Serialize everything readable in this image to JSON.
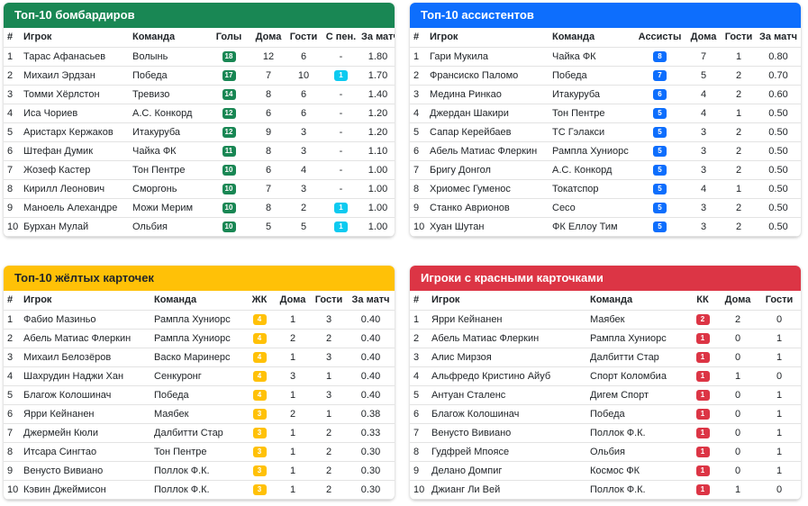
{
  "tables": [
    {
      "title": "Топ-10 бомбардиров",
      "columns": [
        "#",
        "Игрок",
        "Команда",
        "Голы",
        "Дома",
        "Гости",
        "С пен.",
        "За матч"
      ],
      "rows": [
        [
          "1",
          "Тарас Афанасьев",
          "Волынь",
          "18",
          "12",
          "6",
          "-",
          "1.80"
        ],
        [
          "2",
          "Михаил Эрдзан",
          "Победа",
          "17",
          "7",
          "10",
          "1",
          "1.70"
        ],
        [
          "3",
          "Томми Хёрлстон",
          "Тревизо",
          "14",
          "8",
          "6",
          "-",
          "1.40"
        ],
        [
          "4",
          "Иса Чориев",
          "А.С. Конкорд",
          "12",
          "6",
          "6",
          "-",
          "1.20"
        ],
        [
          "5",
          "Аристарх Кержаков",
          "Итакуруба",
          "12",
          "9",
          "3",
          "-",
          "1.20"
        ],
        [
          "6",
          "Штефан Думик",
          "Чайка ФК",
          "11",
          "8",
          "3",
          "-",
          "1.10"
        ],
        [
          "7",
          "Жозеф Кастер",
          "Тон Пентре",
          "10",
          "6",
          "4",
          "-",
          "1.00"
        ],
        [
          "8",
          "Кирилл Леонович",
          "Сморгонь",
          "10",
          "7",
          "3",
          "-",
          "1.00"
        ],
        [
          "9",
          "Маноель Алехандре",
          "Можи Мерим",
          "10",
          "8",
          "2",
          "1",
          "1.00"
        ],
        [
          "10",
          "Бурхан Мулай",
          "Ольбия",
          "10",
          "5",
          "5",
          "1",
          "1.00"
        ]
      ]
    },
    {
      "title": "Топ-10 ассистентов",
      "columns": [
        "#",
        "Игрок",
        "Команда",
        "Ассисты",
        "Дома",
        "Гости",
        "За матч"
      ],
      "rows": [
        [
          "1",
          "Гари Мукила",
          "Чайка ФК",
          "8",
          "7",
          "1",
          "0.80"
        ],
        [
          "2",
          "Франсиско Паломо",
          "Победа",
          "7",
          "5",
          "2",
          "0.70"
        ],
        [
          "3",
          "Медина Ринкао",
          "Итакуруба",
          "6",
          "4",
          "2",
          "0.60"
        ],
        [
          "4",
          "Джердан Шакири",
          "Тон Пентре",
          "5",
          "4",
          "1",
          "0.50"
        ],
        [
          "5",
          "Сапар Керейбаев",
          "ТС Гэлакси",
          "5",
          "3",
          "2",
          "0.50"
        ],
        [
          "6",
          "Абель Матиас Флеркин",
          "Рампла Хуниорс",
          "5",
          "3",
          "2",
          "0.50"
        ],
        [
          "7",
          "Бригу Донгол",
          "А.С. Конкорд",
          "5",
          "3",
          "2",
          "0.50"
        ],
        [
          "8",
          "Хриомес Гуменос",
          "Токатспор",
          "5",
          "4",
          "1",
          "0.50"
        ],
        [
          "9",
          "Станко Аврионов",
          "Сесо",
          "5",
          "3",
          "2",
          "0.50"
        ],
        [
          "10",
          "Хуан Шутан",
          "ФК Еллоу Тим",
          "5",
          "3",
          "2",
          "0.50"
        ]
      ]
    },
    {
      "title": "Топ-10 жёлтых карточек",
      "columns": [
        "#",
        "Игрок",
        "Команда",
        "ЖК",
        "Дома",
        "Гости",
        "За матч"
      ],
      "rows": [
        [
          "1",
          "Фабио Мазиньо",
          "Рампла Хуниорс",
          "4",
          "1",
          "3",
          "0.40"
        ],
        [
          "2",
          "Абель Матиас Флеркин",
          "Рампла Хуниорс",
          "4",
          "2",
          "2",
          "0.40"
        ],
        [
          "3",
          "Михаил Белозёров",
          "Васко Маринерс",
          "4",
          "1",
          "3",
          "0.40"
        ],
        [
          "4",
          "Шахрудин Наджи Хан",
          "Сенкуронг",
          "4",
          "3",
          "1",
          "0.40"
        ],
        [
          "5",
          "Благож Колошинач",
          "Победа",
          "4",
          "1",
          "3",
          "0.40"
        ],
        [
          "6",
          "Ярри Кейнанен",
          "Маябек",
          "3",
          "2",
          "1",
          "0.38"
        ],
        [
          "7",
          "Джермейн Кюли",
          "Далбитти Стар",
          "3",
          "1",
          "2",
          "0.33"
        ],
        [
          "8",
          "Итсара Сингтао",
          "Тон Пентре",
          "3",
          "1",
          "2",
          "0.30"
        ],
        [
          "9",
          "Венусто Вивиано",
          "Поллок Ф.К.",
          "3",
          "1",
          "2",
          "0.30"
        ],
        [
          "10",
          "Кэвин Джеймисон",
          "Поллок Ф.К.",
          "3",
          "1",
          "2",
          "0.30"
        ]
      ]
    },
    {
      "title": "Игроки с красными карточками",
      "columns": [
        "#",
        "Игрок",
        "Команда",
        "КК",
        "Дома",
        "Гости"
      ],
      "rows": [
        [
          "1",
          "Ярри Кейнанен",
          "Маябек",
          "2",
          "2",
          "0"
        ],
        [
          "2",
          "Абель Матиас Флеркин",
          "Рампла Хуниорс",
          "1",
          "0",
          "1"
        ],
        [
          "3",
          "Алис Мирзоя",
          "Далбитти Стар",
          "1",
          "0",
          "1"
        ],
        [
          "4",
          "Альфредо Кристино Айуб",
          "Спорт Коломбиа",
          "1",
          "1",
          "0"
        ],
        [
          "5",
          "Антуан Сталенс",
          "Дигем Спорт",
          "1",
          "0",
          "1"
        ],
        [
          "6",
          "Благож Колошинач",
          "Победа",
          "1",
          "0",
          "1"
        ],
        [
          "7",
          "Венусто Вивиано",
          "Поллок Ф.К.",
          "1",
          "0",
          "1"
        ],
        [
          "8",
          "Гудфрей Мпоясе",
          "Ольбия",
          "1",
          "0",
          "1"
        ],
        [
          "9",
          "Делано Домпиг",
          "Космос ФК",
          "1",
          "0",
          "1"
        ],
        [
          "10",
          "Джианг Ли Вей",
          "Поллок Ф.К.",
          "1",
          "1",
          "0"
        ]
      ]
    }
  ]
}
